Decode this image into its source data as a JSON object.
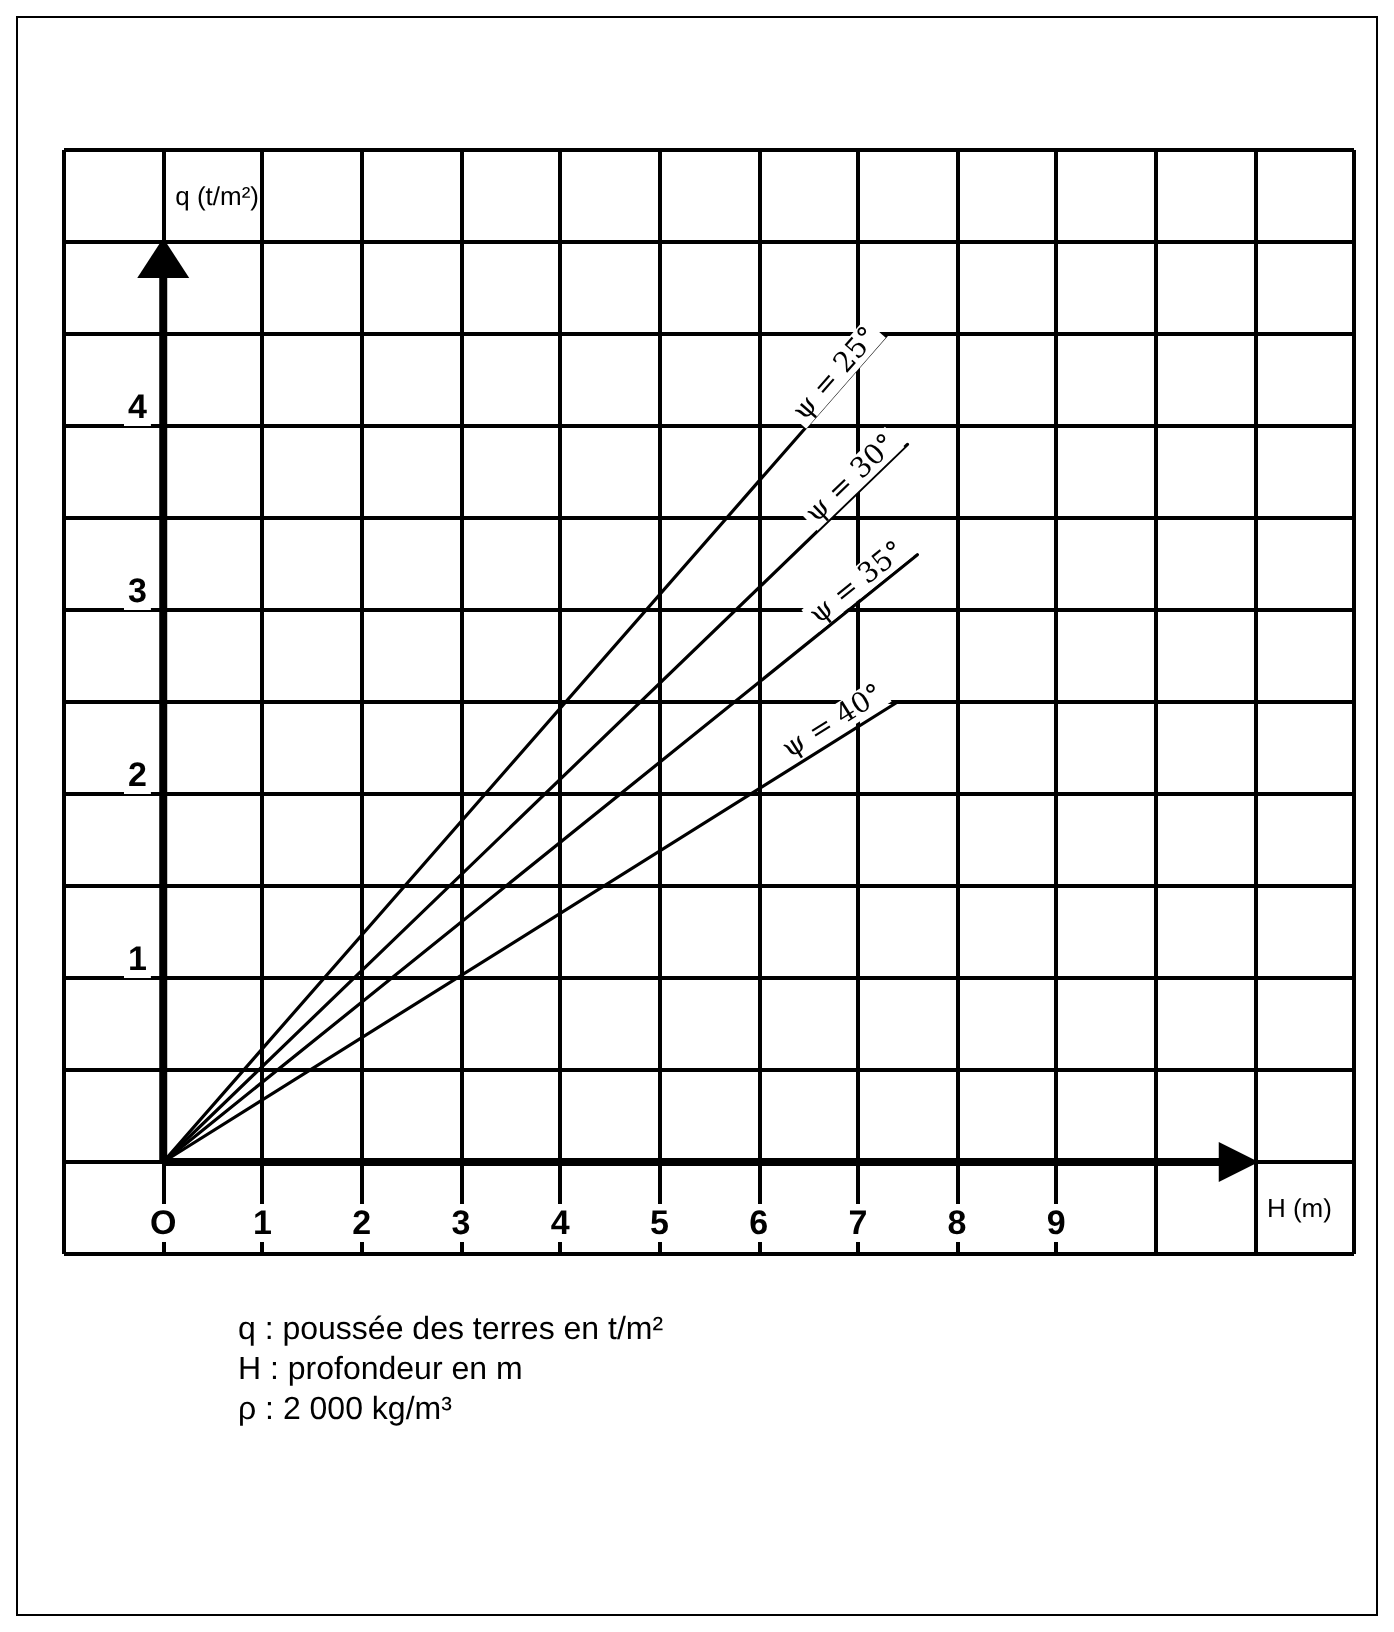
{
  "chart_data": {
    "type": "line",
    "xlabel": "H (m)",
    "ylabel": "q (t/m²)",
    "xlim": [
      -1,
      12
    ],
    "ylim": [
      -0.5,
      5.5
    ],
    "xticks": [
      {
        "value": -1,
        "label": null
      },
      {
        "value": 0,
        "label": "O"
      },
      1,
      2,
      3,
      4,
      5,
      6,
      7,
      8,
      9,
      {
        "value": 10,
        "label": null
      },
      {
        "value": 11,
        "label": null
      },
      {
        "value": 12,
        "label": null
      }
    ],
    "yticks": [
      {
        "value": -0.5,
        "label": null
      },
      {
        "value": 0,
        "label": null
      },
      {
        "value": 0.5,
        "label": null
      },
      1,
      {
        "value": 1.5,
        "label": null
      },
      2,
      {
        "value": 2.5,
        "label": null
      },
      3,
      {
        "value": 3.5,
        "label": null
      },
      4,
      {
        "value": 4.5,
        "label": null
      },
      {
        "value": 5,
        "label": null
      },
      {
        "value": 5.5,
        "label": null
      }
    ],
    "grid": true,
    "legend": false,
    "marker": "none",
    "line_style": "solid",
    "series": [
      {
        "name": "ψ = 25°",
        "color": "#000000",
        "x": [
          0,
          7.3
        ],
        "values": [
          0,
          4.5
        ]
      },
      {
        "name": "ψ = 30°",
        "color": "#000000",
        "x": [
          0,
          7.5
        ],
        "values": [
          0,
          3.9
        ]
      },
      {
        "name": "ψ = 35°",
        "color": "#000000",
        "x": [
          0,
          7.6
        ],
        "values": [
          0,
          3.3
        ]
      },
      {
        "name": "ψ = 40°",
        "color": "#000000",
        "x": [
          0,
          7.4
        ],
        "values": [
          0,
          2.5
        ]
      }
    ],
    "annotations": [
      "q : poussée des terres en t/m²",
      "H : profondeur en m",
      "ρ : 2 000 kg/m³"
    ]
  }
}
